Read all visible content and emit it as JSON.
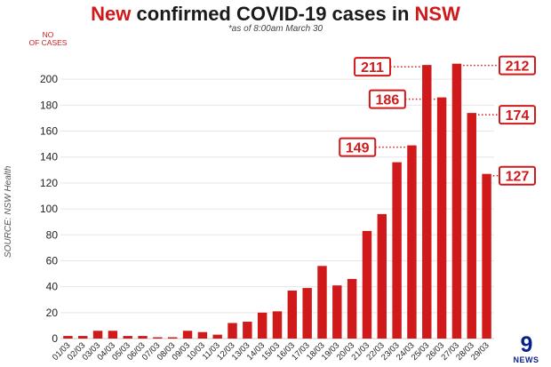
{
  "title": {
    "highlight_start": "New",
    "middle": " confirmed COVID-19 cases in ",
    "highlight_end": "NSW"
  },
  "subtitle": "*as of 8:00am March 30",
  "ylabel_line1": "NO",
  "ylabel_line2": "OF CASES",
  "source": "SOURCE: NSW Health",
  "logo": {
    "mark": "9",
    "text": "NEWS"
  },
  "colors": {
    "bar": "#d0191a",
    "accent": "#d0191a",
    "brand": "#0a1f8f"
  },
  "chart_data": {
    "type": "bar",
    "title": "New confirmed COVID-19 cases in NSW",
    "ylabel": "NO OF CASES",
    "ylim": [
      0,
      220
    ],
    "yticks": [
      0,
      20,
      40,
      60,
      80,
      100,
      120,
      140,
      160,
      180,
      200
    ],
    "grid": true,
    "categories": [
      "01/03",
      "02/03",
      "03/03",
      "04/03",
      "05/03",
      "06/03",
      "07/03",
      "08/03",
      "09/03",
      "10/03",
      "11/03",
      "12/03",
      "13/03",
      "14/03",
      "15/03",
      "16/03",
      "17/03",
      "18/03",
      "19/03",
      "20/03",
      "21/03",
      "22/03",
      "23/03",
      "24/03",
      "25/03",
      "26/03",
      "27/03",
      "28/03",
      "29/03"
    ],
    "values": [
      2,
      2,
      6,
      6,
      2,
      2,
      1,
      1,
      6,
      5,
      3,
      12,
      13,
      20,
      21,
      37,
      39,
      56,
      41,
      46,
      83,
      96,
      136,
      149,
      211,
      186,
      212,
      174,
      127
    ],
    "callouts": [
      {
        "label": "211",
        "index": 24,
        "side": "left"
      },
      {
        "label": "186",
        "index": 25,
        "side": "left"
      },
      {
        "label": "149",
        "index": 23,
        "side": "left"
      },
      {
        "label": "212",
        "index": 26,
        "side": "right"
      },
      {
        "label": "174",
        "index": 27,
        "side": "right"
      },
      {
        "label": "127",
        "index": 28,
        "side": "right"
      }
    ]
  }
}
